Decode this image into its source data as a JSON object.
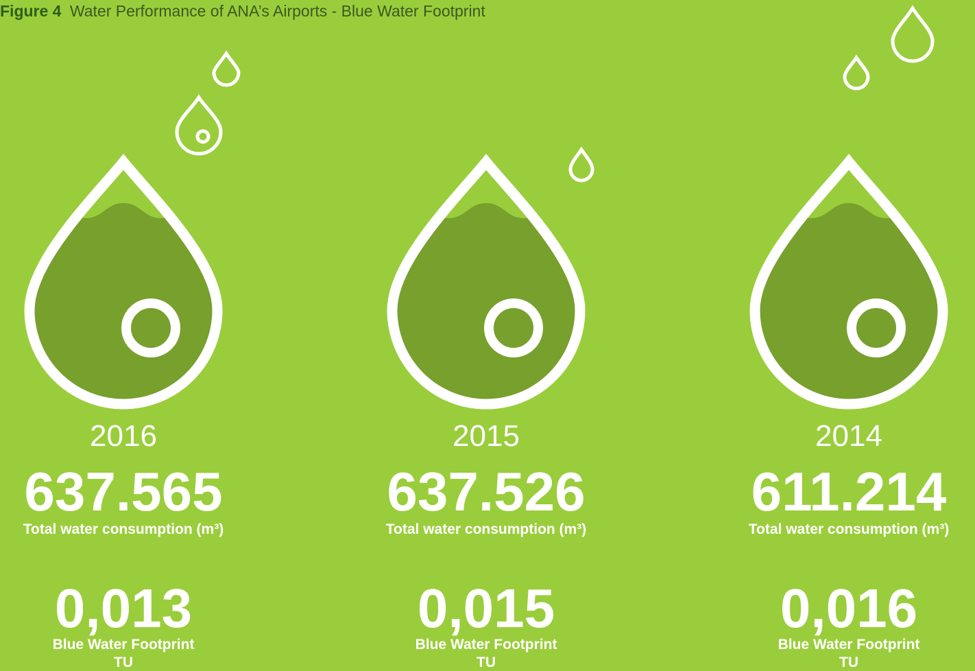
{
  "header": {
    "figure_label": "Figure 4",
    "title": "Water Performance of ANA’s Airports - Blue Water Footprint"
  },
  "columns": [
    {
      "year": "2016",
      "consumption": "637.565",
      "consumption_label": "Total water consumption (m³)",
      "footprint": "0,013",
      "footprint_label": "Blue Water Footprint",
      "footprint_unit": "TU"
    },
    {
      "year": "2015",
      "consumption": "637.526",
      "consumption_label": "Total water consumption (m³)",
      "footprint": "0,015",
      "footprint_label": "Blue Water Footprint",
      "footprint_unit": "TU"
    },
    {
      "year": "2014",
      "consumption": "611.214",
      "consumption_label": "Total water consumption (m³)",
      "footprint": "0,016",
      "footprint_label": "Blue Water Footprint",
      "footprint_unit": "TU"
    }
  ]
}
